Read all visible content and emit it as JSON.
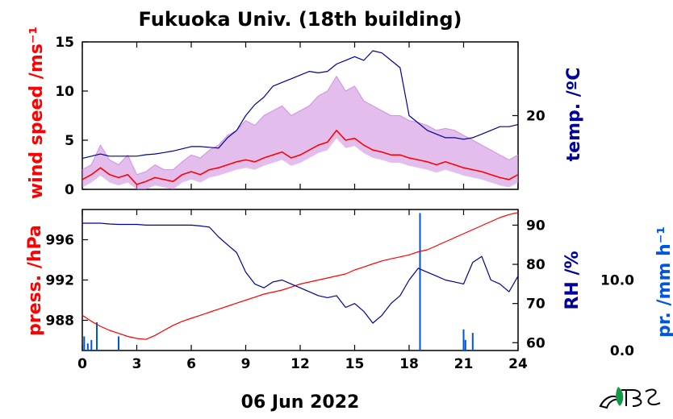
{
  "chart_data": [
    {
      "type": "line",
      "title": "Fukuoka Univ. (18th building)",
      "ylabel_left": "wind speed /ms⁻¹",
      "ylabel_right": "temp. /ºC",
      "xlim": [
        0,
        24
      ],
      "ylim_left": [
        0,
        15
      ],
      "yticks_left": [
        "0",
        "5",
        "10",
        "15"
      ],
      "ylim_right": [
        10,
        30
      ],
      "yticks_right": [
        "20"
      ],
      "x_ticks": [
        "0",
        "3",
        "6",
        "9",
        "12",
        "15",
        "18",
        "21",
        "24"
      ],
      "colors": {
        "wind_gust": "#cc88dd",
        "wind_mean": "#ff0000",
        "temp": "#000099"
      },
      "series": [
        {
          "role": "wind-gust",
          "axis": "left",
          "x": [
            0,
            0.5,
            1,
            1.5,
            2,
            2.5,
            3,
            3.5,
            4,
            4.5,
            5,
            5.5,
            6,
            6.5,
            7,
            7.5,
            8,
            8.5,
            9,
            9.5,
            10,
            10.5,
            11,
            11.5,
            12,
            12.5,
            13,
            13.5,
            14,
            14.5,
            15,
            15.5,
            16,
            16.5,
            17,
            17.5,
            18,
            18.5,
            19,
            19.5,
            20,
            20.5,
            21,
            21.5,
            22,
            22.5,
            23,
            23.5,
            24
          ],
          "values": [
            2.0,
            2.5,
            4.5,
            3.0,
            2.5,
            3.5,
            1.5,
            1.8,
            2.5,
            2.0,
            2.0,
            2.8,
            3.5,
            3.2,
            4.0,
            4.5,
            5.5,
            6.0,
            7.0,
            6.5,
            7.5,
            8.0,
            8.5,
            7.5,
            8.0,
            8.5,
            9.5,
            10.0,
            11.5,
            10.0,
            10.5,
            9.0,
            8.5,
            8.0,
            7.5,
            7.5,
            7.0,
            6.8,
            6.5,
            6.0,
            6.2,
            6.0,
            5.5,
            5.0,
            4.5,
            4.0,
            3.5,
            3.0,
            3.5
          ]
        },
        {
          "role": "wind-mean",
          "axis": "left",
          "x": [
            0,
            0.5,
            1,
            1.5,
            2,
            2.5,
            3,
            3.5,
            4,
            4.5,
            5,
            5.5,
            6,
            6.5,
            7,
            7.5,
            8,
            8.5,
            9,
            9.5,
            10,
            10.5,
            11,
            11.5,
            12,
            12.5,
            13,
            13.5,
            14,
            14.5,
            15,
            15.5,
            16,
            16.5,
            17,
            17.5,
            18,
            18.5,
            19,
            19.5,
            20,
            20.5,
            21,
            21.5,
            22,
            22.5,
            23,
            23.5,
            24
          ],
          "values": [
            1.0,
            1.5,
            2.2,
            1.5,
            1.2,
            1.5,
            0.5,
            0.8,
            1.2,
            1.0,
            0.8,
            1.5,
            1.8,
            1.5,
            2.0,
            2.2,
            2.5,
            2.8,
            3.0,
            2.8,
            3.2,
            3.5,
            3.8,
            3.2,
            3.5,
            4.0,
            4.5,
            4.8,
            6.0,
            5.0,
            5.2,
            4.5,
            4.0,
            3.8,
            3.5,
            3.5,
            3.2,
            3.0,
            2.8,
            2.5,
            2.8,
            2.5,
            2.2,
            2.0,
            1.8,
            1.5,
            1.2,
            1.0,
            1.5
          ]
        },
        {
          "role": "temperature",
          "axis": "right",
          "x": [
            0,
            0.5,
            1,
            1.5,
            2,
            2.5,
            3,
            3.5,
            4,
            4.5,
            5,
            5.5,
            6,
            6.5,
            7,
            7.5,
            8,
            8.5,
            9,
            9.5,
            10,
            10.5,
            11,
            11.5,
            12,
            12.5,
            13,
            13.5,
            14,
            14.5,
            15,
            15.5,
            16,
            16.5,
            17,
            17.5,
            18,
            18.5,
            19,
            19.5,
            20,
            20.5,
            21,
            21.5,
            22,
            22.5,
            23,
            23.5,
            24
          ],
          "values": [
            14.2,
            14.5,
            14.8,
            14.5,
            14.5,
            14.5,
            14.5,
            14.7,
            14.8,
            15.0,
            15.2,
            15.5,
            15.8,
            15.8,
            15.7,
            15.6,
            17.0,
            18.0,
            20.0,
            21.5,
            22.5,
            24.0,
            24.5,
            25.0,
            25.5,
            26.0,
            25.8,
            26.0,
            27.0,
            27.5,
            28.0,
            27.5,
            28.8,
            28.5,
            27.5,
            26.5,
            20.0,
            19.0,
            18.0,
            17.5,
            17.0,
            17.0,
            16.8,
            17.0,
            17.5,
            18.0,
            18.5,
            18.5,
            18.8
          ]
        }
      ]
    },
    {
      "type": "line",
      "ylabel_left": "press. /hPa",
      "ylabel_right": "RH /%",
      "ylabel_far_right": "pr. /mm h⁻¹",
      "xlim": [
        0,
        24
      ],
      "xlabel": "06 Jun 2022",
      "ylim_left": [
        985,
        999
      ],
      "yticks_left": [
        "988",
        "992",
        "996"
      ],
      "ylim_right": [
        58,
        94
      ],
      "yticks_right": [
        "60",
        "70",
        "80",
        "90"
      ],
      "ylim_far_right": [
        0,
        20
      ],
      "yticks_far_right": [
        "0.0",
        "10.0"
      ],
      "x_ticks": [
        "0",
        "3",
        "6",
        "9",
        "12",
        "15",
        "18",
        "21",
        "24"
      ],
      "colors": {
        "pressure": "#ff0000",
        "rh": "#000099",
        "precip": "#0055dd"
      },
      "series": [
        {
          "role": "pressure",
          "axis": "left",
          "x": [
            0,
            0.5,
            1,
            1.5,
            2,
            2.5,
            3,
            3.5,
            4,
            4.5,
            5,
            5.5,
            6,
            6.5,
            7,
            7.5,
            8,
            8.5,
            9,
            9.5,
            10,
            10.5,
            11,
            11.5,
            12,
            12.5,
            13,
            13.5,
            14,
            14.5,
            15,
            15.5,
            16,
            16.5,
            17,
            17.5,
            18,
            18.5,
            19,
            19.5,
            20,
            20.5,
            21,
            21.5,
            22,
            22.5,
            23,
            23.5,
            24
          ],
          "values": [
            988.5,
            987.9,
            987.4,
            987.0,
            986.7,
            986.4,
            986.2,
            986.1,
            986.5,
            987.0,
            987.5,
            987.9,
            988.2,
            988.5,
            988.8,
            989.1,
            989.4,
            989.7,
            990.0,
            990.3,
            990.6,
            990.8,
            991.0,
            991.3,
            991.6,
            991.8,
            992.0,
            992.2,
            992.4,
            992.6,
            993.0,
            993.3,
            993.6,
            993.9,
            994.1,
            994.3,
            994.5,
            994.8,
            995.0,
            995.4,
            995.8,
            996.2,
            996.6,
            997.0,
            997.4,
            997.8,
            998.2,
            998.5,
            998.7
          ]
        },
        {
          "role": "relative-humidity",
          "axis": "right",
          "x": [
            0,
            0.5,
            1,
            1.5,
            2,
            2.5,
            3,
            3.5,
            4,
            4.5,
            5,
            5.5,
            6,
            6.5,
            7,
            7.5,
            8,
            8.5,
            9,
            9.5,
            10,
            10.5,
            11,
            11.5,
            12,
            12.5,
            13,
            13.5,
            14,
            14.5,
            15,
            15.5,
            16,
            16.5,
            17,
            17.5,
            18,
            18.5,
            19,
            19.5,
            20,
            20.5,
            21,
            21.5,
            22,
            22.5,
            23,
            23.5,
            24
          ],
          "values": [
            90.5,
            90.5,
            90.5,
            90.3,
            90.2,
            90.2,
            90.2,
            90.0,
            90.0,
            90.0,
            90.0,
            90.0,
            90.0,
            89.8,
            89.5,
            87.0,
            85.0,
            83.0,
            78.0,
            75.0,
            74.0,
            75.5,
            76.0,
            75.0,
            74.0,
            73.0,
            72.0,
            71.5,
            72.0,
            69.0,
            70.0,
            68.0,
            65.0,
            67.0,
            70.0,
            72.0,
            76.0,
            79.0,
            78.0,
            77.0,
            76.0,
            75.5,
            75.0,
            80.5,
            82.0,
            76.0,
            75.0,
            73.0,
            77.0
          ]
        },
        {
          "role": "precipitation",
          "axis": "far_right",
          "x": [
            0.1,
            0.3,
            0.5,
            0.8,
            2.0,
            18.6,
            21.0,
            21.1,
            21.5
          ],
          "values": [
            2.0,
            1.0,
            1.5,
            4.0,
            2.0,
            19.5,
            3.0,
            1.5,
            2.5
          ]
        }
      ]
    }
  ]
}
